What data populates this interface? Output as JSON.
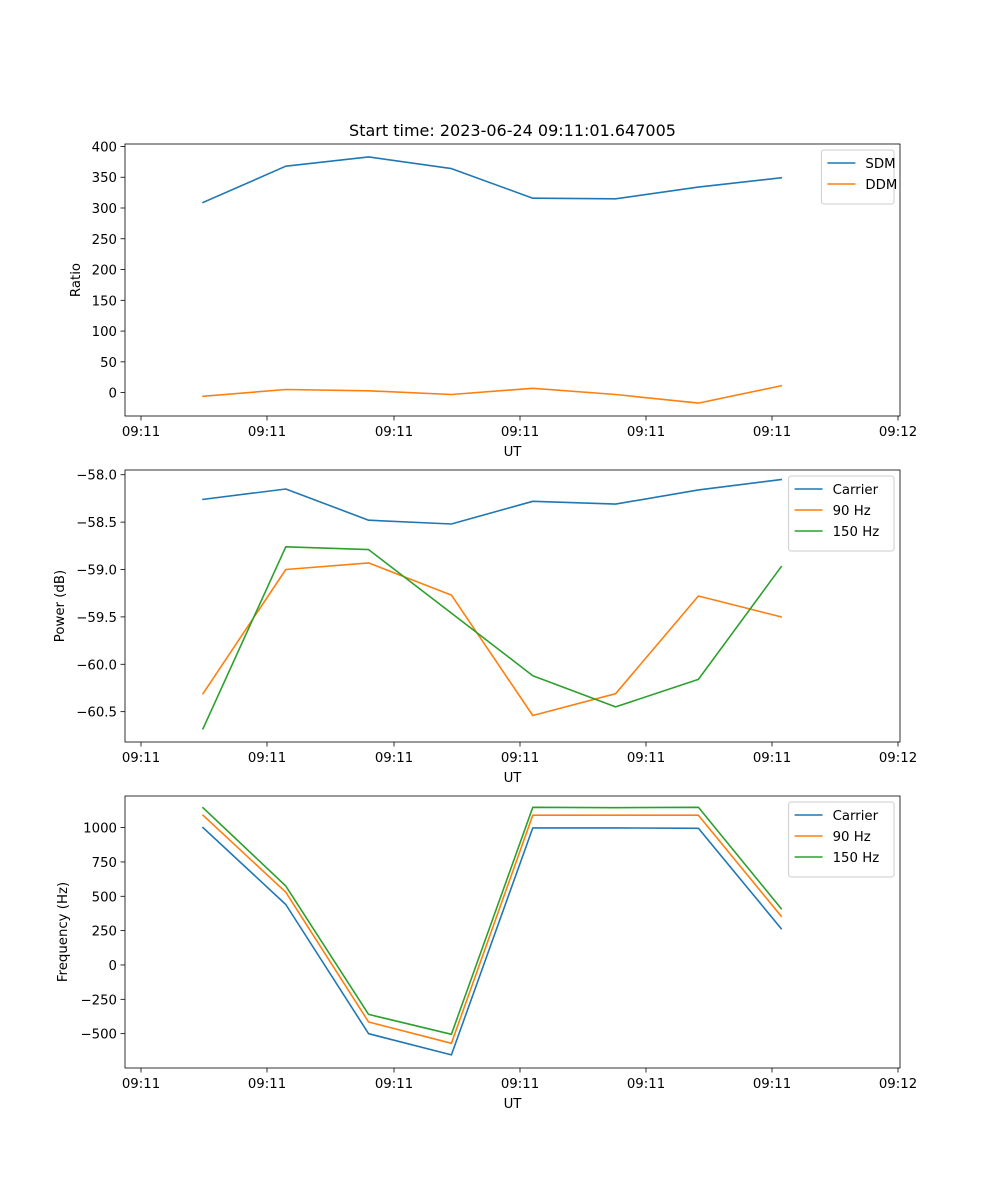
{
  "figure": {
    "title": "Start time: 2023-06-24 09:11:01.647005"
  },
  "chart_data": [
    {
      "type": "line",
      "title": "Start time: 2023-06-24 09:11:01.647005",
      "xlabel": "UT",
      "ylabel": "Ratio",
      "x_tick_labels": [
        "09:11",
        "09:11",
        "09:11",
        "09:11",
        "09:11",
        "09:11",
        "09:11",
        "09:12"
      ],
      "y_ticks": [
        0,
        50,
        100,
        150,
        200,
        250,
        300,
        350,
        400
      ],
      "ylim": [
        -38,
        404
      ],
      "grid": false,
      "legend_position": "top-right",
      "series": [
        {
          "name": "SDM",
          "color": "#1f77b4",
          "values": [
            309,
            368,
            383,
            364,
            316,
            315,
            334,
            349
          ]
        },
        {
          "name": "DDM",
          "color": "#ff7f0e",
          "values": [
            -6,
            5,
            3,
            -3,
            7,
            -3,
            -17,
            11
          ]
        }
      ]
    },
    {
      "type": "line",
      "title": "",
      "xlabel": "UT",
      "ylabel": "Power (dB)",
      "x_tick_labels": [
        "09:11",
        "09:11",
        "09:11",
        "09:11",
        "09:11",
        "09:11",
        "09:11",
        "09:12"
      ],
      "y_ticks": [
        -60.5,
        -60.0,
        -59.5,
        -59.0,
        -58.5,
        -58.0
      ],
      "y_tick_labels": [
        "−60.5",
        "−60.0",
        "−59.5",
        "−59.0",
        "−58.5",
        "−58.0"
      ],
      "ylim": [
        -60.82,
        -57.95
      ],
      "grid": false,
      "legend_position": "top-right",
      "series": [
        {
          "name": "Carrier",
          "color": "#1f77b4",
          "values": [
            -58.26,
            -58.15,
            -58.48,
            -58.52,
            -58.28,
            -58.31,
            -58.16,
            -58.05
          ]
        },
        {
          "name": "90 Hz",
          "color": "#ff7f0e",
          "values": [
            -60.31,
            -59.0,
            -58.93,
            -59.27,
            -60.54,
            -60.31,
            -59.28,
            -59.5
          ]
        },
        {
          "name": "150 Hz",
          "color": "#2ca02c",
          "values": [
            -60.68,
            -58.76,
            -58.79,
            -59.46,
            -60.12,
            -60.45,
            -60.16,
            -58.97
          ]
        }
      ]
    },
    {
      "type": "line",
      "title": "",
      "xlabel": "UT",
      "ylabel": "Frequency (Hz)",
      "x_tick_labels": [
        "09:11",
        "09:11",
        "09:11",
        "09:11",
        "09:11",
        "09:11",
        "09:11",
        "09:12"
      ],
      "y_ticks": [
        -500,
        -250,
        0,
        250,
        500,
        750,
        1000
      ],
      "y_tick_labels": [
        "−500",
        "−250",
        "0",
        "250",
        "500",
        "750",
        "1000"
      ],
      "ylim": [
        -750,
        1230
      ],
      "grid": false,
      "legend_position": "top-right",
      "series": [
        {
          "name": "Carrier",
          "color": "#1f77b4",
          "values": [
            1000,
            440,
            -500,
            -655,
            998,
            998,
            995,
            265
          ]
        },
        {
          "name": "90 Hz",
          "color": "#ff7f0e",
          "values": [
            1090,
            530,
            -415,
            -570,
            1090,
            1090,
            1090,
            355
          ]
        },
        {
          "name": "150 Hz",
          "color": "#2ca02c",
          "values": [
            1145,
            575,
            -360,
            -505,
            1148,
            1145,
            1148,
            410
          ]
        }
      ]
    }
  ]
}
